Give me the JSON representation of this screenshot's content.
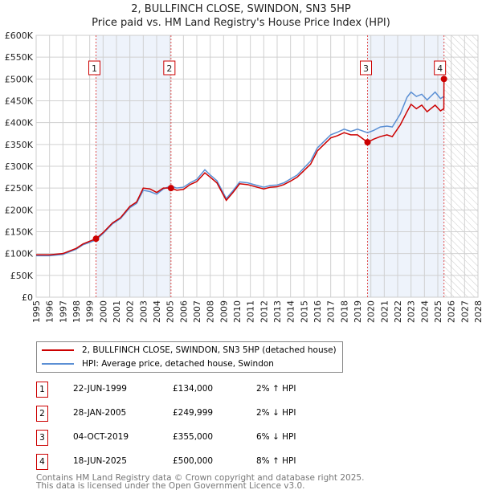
{
  "title": "2, BULLFINCH CLOSE, SWINDON, SN3 5HP",
  "subtitle": "Price paid vs. HM Land Registry's House Price Index (HPI)",
  "chart_data": {
    "type": "line",
    "xlim": [
      1995,
      2028
    ],
    "ylim": [
      0,
      600000
    ],
    "yticks": [
      {
        "v": 0,
        "l": "£0"
      },
      {
        "v": 50000,
        "l": "£50K"
      },
      {
        "v": 100000,
        "l": "£100K"
      },
      {
        "v": 150000,
        "l": "£150K"
      },
      {
        "v": 200000,
        "l": "£200K"
      },
      {
        "v": 250000,
        "l": "£250K"
      },
      {
        "v": 300000,
        "l": "£300K"
      },
      {
        "v": 350000,
        "l": "£350K"
      },
      {
        "v": 400000,
        "l": "£400K"
      },
      {
        "v": 450000,
        "l": "£450K"
      },
      {
        "v": 500000,
        "l": "£500K"
      },
      {
        "v": 550000,
        "l": "£550K"
      },
      {
        "v": 600000,
        "l": "£600K"
      }
    ],
    "xticks": [
      "1995",
      "1996",
      "1997",
      "1998",
      "1999",
      "2000",
      "2001",
      "2002",
      "2003",
      "2004",
      "2005",
      "2006",
      "2007",
      "2008",
      "2009",
      "2010",
      "2011",
      "2012",
      "2013",
      "2014",
      "2015",
      "2016",
      "2017",
      "2018",
      "2019",
      "2020",
      "2021",
      "2022",
      "2023",
      "2024",
      "2025",
      "2026",
      "2027",
      "2028"
    ],
    "series": [
      {
        "name": "2, BULLFINCH CLOSE, SWINDON, SN3 5HP (detached house)",
        "color": "#cc0000",
        "x": [
          1995,
          1996,
          1997,
          1998,
          1998.5,
          1999.47,
          2000,
          2000.7,
          2001.3,
          2002,
          2002.5,
          2003,
          2003.5,
          2004,
          2004.5,
          2005.07,
          2005.5,
          2006,
          2006.5,
          2007,
          2007.6,
          2008,
          2008.5,
          2009.2,
          2009.7,
          2010.2,
          2010.8,
          2011.5,
          2012,
          2012.5,
          2013,
          2013.5,
          2014,
          2014.5,
          2015,
          2015.5,
          2016,
          2016.5,
          2017,
          2017.5,
          2018,
          2018.5,
          2019,
          2019.75,
          2020.2,
          2020.7,
          2021.2,
          2021.6,
          2022.2,
          2022.7,
          2023,
          2023.4,
          2023.8,
          2024.2,
          2024.8,
          2025.2,
          2025.45,
          2025.46
        ],
        "y": [
          97000,
          97000,
          100000,
          112000,
          122000,
          134000,
          148000,
          170000,
          182000,
          208000,
          218000,
          250000,
          248000,
          240000,
          250000,
          249999,
          245000,
          247000,
          258000,
          265000,
          285000,
          275000,
          262000,
          222000,
          240000,
          260000,
          258000,
          252000,
          248000,
          252000,
          253000,
          258000,
          266000,
          275000,
          290000,
          305000,
          335000,
          350000,
          365000,
          370000,
          377000,
          372000,
          372000,
          355000,
          362000,
          368000,
          372000,
          368000,
          395000,
          425000,
          442000,
          432000,
          440000,
          425000,
          440000,
          427000,
          432000,
          500000
        ]
      },
      {
        "name": "HPI: Average price, detached house, Swindon",
        "color": "#5b8fd4",
        "x": [
          1995,
          1996,
          1997,
          1998,
          1998.5,
          1999.47,
          2000,
          2000.7,
          2001.3,
          2002,
          2002.5,
          2003,
          2003.5,
          2004,
          2004.5,
          2005.07,
          2005.5,
          2006,
          2006.5,
          2007,
          2007.6,
          2008,
          2008.5,
          2009.2,
          2009.7,
          2010.2,
          2010.8,
          2011.5,
          2012,
          2012.5,
          2013,
          2013.5,
          2014,
          2014.5,
          2015,
          2015.5,
          2016,
          2016.5,
          2017,
          2017.5,
          2018,
          2018.5,
          2019,
          2019.75,
          2020.2,
          2020.7,
          2021.2,
          2021.6,
          2022.2,
          2022.7,
          2023,
          2023.4,
          2023.8,
          2024.2,
          2024.8,
          2025.2,
          2025.45
        ],
        "y": [
          95000,
          95000,
          98000,
          110000,
          120000,
          131000,
          146000,
          168000,
          180000,
          205000,
          215000,
          245000,
          242000,
          236000,
          248000,
          255000,
          250000,
          252000,
          262000,
          270000,
          292000,
          280000,
          267000,
          226000,
          244000,
          264000,
          262000,
          256000,
          252000,
          256000,
          257000,
          262000,
          271000,
          280000,
          296000,
          312000,
          342000,
          357000,
          372000,
          378000,
          385000,
          380000,
          385000,
          377000,
          382000,
          390000,
          392000,
          390000,
          420000,
          458000,
          470000,
          460000,
          465000,
          452000,
          470000,
          455000,
          460000
        ]
      }
    ],
    "sales": [
      {
        "n": "1",
        "x": 1999.47,
        "date": "22-JUN-1999",
        "price": "£134,000",
        "value": 134000,
        "hpi": "2% ↑ HPI"
      },
      {
        "n": "2",
        "x": 2005.07,
        "date": "28-JAN-2005",
        "price": "£249,999",
        "value": 249999,
        "hpi": "2% ↓ HPI"
      },
      {
        "n": "3",
        "x": 2019.75,
        "date": "04-OCT-2019",
        "price": "£355,000",
        "value": 355000,
        "hpi": "6% ↓ HPI"
      },
      {
        "n": "4",
        "x": 2025.46,
        "date": "18-JUN-2025",
        "price": "£500,000",
        "value": 500000,
        "hpi": "8% ↑ HPI"
      }
    ],
    "shaded": [
      [
        1999.47,
        2005.07
      ],
      [
        2019.75,
        2025.46
      ]
    ],
    "forecast_start": 2025.46
  },
  "footer": [
    "Contains HM Land Registry data © Crown copyright and database right 2025.",
    "This data is licensed under the Open Government Licence v3.0."
  ]
}
